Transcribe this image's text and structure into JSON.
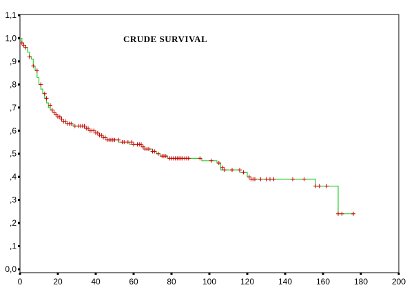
{
  "chart_data": {
    "type": "line",
    "title": "CRUDE SURVIVAL",
    "xlabel": "",
    "ylabel": "",
    "xlim": [
      0,
      200
    ],
    "ylim": [
      0.0,
      1.1
    ],
    "x_ticks": [
      0,
      20,
      40,
      60,
      80,
      100,
      120,
      140,
      160,
      180,
      200
    ],
    "x_tick_labels": [
      "0",
      "20",
      "40",
      "60",
      "80",
      "100",
      "120",
      "140",
      "160",
      "180",
      "200"
    ],
    "y_ticks": [
      0.0,
      0.1,
      0.2,
      0.3,
      0.4,
      0.5,
      0.6,
      0.7,
      0.8,
      0.9,
      1.0,
      1.1
    ],
    "y_tick_labels": [
      "0,0",
      ",1",
      ",2",
      ",3",
      ",4",
      ",5",
      ",6",
      ",7",
      ",8",
      ",9",
      "1,0",
      "1,1"
    ],
    "grid": false,
    "legend": "none",
    "line_color": "#33cc33",
    "censor_color": "#cc0000",
    "curve_style": "step",
    "series": [
      {
        "steps": [
          [
            0,
            1.0
          ],
          [
            1,
            0.98
          ],
          [
            2,
            0.97
          ],
          [
            3,
            0.96
          ],
          [
            4,
            0.94
          ],
          [
            5,
            0.92
          ],
          [
            6,
            0.91
          ],
          [
            7,
            0.88
          ],
          [
            8,
            0.86
          ],
          [
            9,
            0.83
          ],
          [
            10,
            0.8
          ],
          [
            11,
            0.78
          ],
          [
            12,
            0.76
          ],
          [
            13,
            0.74
          ],
          [
            14,
            0.72
          ],
          [
            15,
            0.7
          ],
          [
            16,
            0.69
          ],
          [
            17,
            0.68
          ],
          [
            18,
            0.67
          ],
          [
            20,
            0.66
          ],
          [
            22,
            0.64
          ],
          [
            24,
            0.63
          ],
          [
            28,
            0.62
          ],
          [
            34,
            0.61
          ],
          [
            36,
            0.6
          ],
          [
            40,
            0.59
          ],
          [
            42,
            0.58
          ],
          [
            44,
            0.57
          ],
          [
            46,
            0.56
          ],
          [
            52,
            0.55
          ],
          [
            58,
            0.54
          ],
          [
            64,
            0.53
          ],
          [
            66,
            0.52
          ],
          [
            70,
            0.51
          ],
          [
            72,
            0.5
          ],
          [
            74,
            0.49
          ],
          [
            78,
            0.48
          ],
          [
            96,
            0.47
          ],
          [
            104,
            0.46
          ],
          [
            106,
            0.43
          ],
          [
            116,
            0.42
          ],
          [
            120,
            0.4
          ],
          [
            122,
            0.39
          ],
          [
            156,
            0.36
          ],
          [
            168,
            0.24
          ],
          [
            177,
            0.24
          ]
        ],
        "censored": [
          [
            1,
            0.98
          ],
          [
            2,
            0.97
          ],
          [
            3,
            0.96
          ],
          [
            5,
            0.92
          ],
          [
            7,
            0.88
          ],
          [
            9,
            0.86
          ],
          [
            11,
            0.8
          ],
          [
            13,
            0.76
          ],
          [
            14,
            0.74
          ],
          [
            16,
            0.71
          ],
          [
            17,
            0.69
          ],
          [
            18,
            0.68
          ],
          [
            19,
            0.67
          ],
          [
            20,
            0.66
          ],
          [
            21,
            0.66
          ],
          [
            22,
            0.65
          ],
          [
            23,
            0.64
          ],
          [
            24,
            0.64
          ],
          [
            25,
            0.63
          ],
          [
            26,
            0.63
          ],
          [
            27,
            0.63
          ],
          [
            29,
            0.62
          ],
          [
            31,
            0.62
          ],
          [
            32,
            0.62
          ],
          [
            33,
            0.62
          ],
          [
            34,
            0.62
          ],
          [
            35,
            0.61
          ],
          [
            36,
            0.61
          ],
          [
            37,
            0.6
          ],
          [
            38,
            0.6
          ],
          [
            39,
            0.6
          ],
          [
            40,
            0.59
          ],
          [
            41,
            0.59
          ],
          [
            42,
            0.58
          ],
          [
            43,
            0.58
          ],
          [
            44,
            0.57
          ],
          [
            45,
            0.57
          ],
          [
            46,
            0.56
          ],
          [
            47,
            0.56
          ],
          [
            48,
            0.56
          ],
          [
            49,
            0.56
          ],
          [
            50,
            0.56
          ],
          [
            52,
            0.56
          ],
          [
            54,
            0.55
          ],
          [
            55,
            0.55
          ],
          [
            57,
            0.55
          ],
          [
            59,
            0.55
          ],
          [
            60,
            0.54
          ],
          [
            62,
            0.54
          ],
          [
            63,
            0.54
          ],
          [
            64,
            0.54
          ],
          [
            65,
            0.53
          ],
          [
            66,
            0.52
          ],
          [
            67,
            0.52
          ],
          [
            68,
            0.52
          ],
          [
            70,
            0.51
          ],
          [
            71,
            0.51
          ],
          [
            73,
            0.5
          ],
          [
            75,
            0.49
          ],
          [
            76,
            0.49
          ],
          [
            77,
            0.49
          ],
          [
            79,
            0.48
          ],
          [
            80,
            0.48
          ],
          [
            81,
            0.48
          ],
          [
            82,
            0.48
          ],
          [
            83,
            0.48
          ],
          [
            84,
            0.48
          ],
          [
            85,
            0.48
          ],
          [
            86,
            0.48
          ],
          [
            87,
            0.48
          ],
          [
            88,
            0.48
          ],
          [
            89,
            0.48
          ],
          [
            95,
            0.48
          ],
          [
            101,
            0.47
          ],
          [
            105,
            0.46
          ],
          [
            107,
            0.44
          ],
          [
            108,
            0.43
          ],
          [
            112,
            0.43
          ],
          [
            116,
            0.43
          ],
          [
            118,
            0.42
          ],
          [
            121,
            0.4
          ],
          [
            122,
            0.39
          ],
          [
            123,
            0.39
          ],
          [
            124,
            0.39
          ],
          [
            127,
            0.39
          ],
          [
            130,
            0.39
          ],
          [
            132,
            0.39
          ],
          [
            134,
            0.39
          ],
          [
            144,
            0.39
          ],
          [
            150,
            0.39
          ],
          [
            156,
            0.36
          ],
          [
            158,
            0.36
          ],
          [
            162,
            0.36
          ],
          [
            168,
            0.24
          ],
          [
            170,
            0.24
          ],
          [
            176,
            0.24
          ]
        ]
      }
    ]
  }
}
